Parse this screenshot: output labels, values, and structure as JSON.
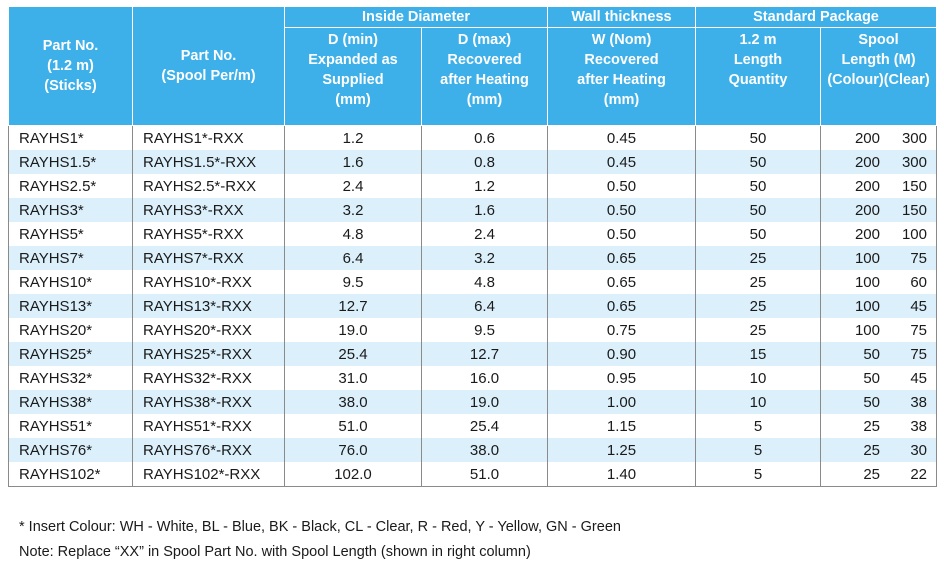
{
  "header": {
    "part_no_sticks": [
      "Part No.",
      "(1.2 m)",
      "(Sticks)"
    ],
    "part_no_spool": [
      "Part No.",
      "(Spool Per/m)"
    ],
    "inside_diameter": "Inside Diameter",
    "d_min": [
      "D (min)",
      "Expanded as",
      "Supplied",
      "(mm)"
    ],
    "d_max": [
      "D (max)",
      "Recovered",
      "after Heating",
      "(mm)"
    ],
    "wall_thickness": "Wall thickness",
    "w_nom": [
      "W (Nom)",
      "Recovered",
      "after Heating",
      "(mm)"
    ],
    "standard_package": "Standard Package",
    "length_qty": [
      "1.2 m",
      "Length",
      "Quantity"
    ],
    "spool_length": [
      "Spool",
      "Length (M)",
      "(Colour)(Clear)"
    ]
  },
  "rows": [
    {
      "part": "RAYHS1*",
      "spool_part": "RAYHS1*-RXX",
      "dmin": "1.2",
      "dmax": "0.6",
      "wall": "0.45",
      "qty": "50",
      "colour": "200",
      "clear": "300"
    },
    {
      "part": "RAYHS1.5*",
      "spool_part": "RAYHS1.5*-RXX",
      "dmin": "1.6",
      "dmax": "0.8",
      "wall": "0.45",
      "qty": "50",
      "colour": "200",
      "clear": "300"
    },
    {
      "part": "RAYHS2.5*",
      "spool_part": "RAYHS2.5*-RXX",
      "dmin": "2.4",
      "dmax": "1.2",
      "wall": "0.50",
      "qty": "50",
      "colour": "200",
      "clear": "150"
    },
    {
      "part": "RAYHS3*",
      "spool_part": "RAYHS3*-RXX",
      "dmin": "3.2",
      "dmax": "1.6",
      "wall": "0.50",
      "qty": "50",
      "colour": "200",
      "clear": "150"
    },
    {
      "part": "RAYHS5*",
      "spool_part": "RAYHS5*-RXX",
      "dmin": "4.8",
      "dmax": "2.4",
      "wall": "0.50",
      "qty": "50",
      "colour": "200",
      "clear": "100"
    },
    {
      "part": "RAYHS7*",
      "spool_part": "RAYHS7*-RXX",
      "dmin": "6.4",
      "dmax": "3.2",
      "wall": "0.65",
      "qty": "25",
      "colour": "100",
      "clear": "75"
    },
    {
      "part": "RAYHS10*",
      "spool_part": "RAYHS10*-RXX",
      "dmin": "9.5",
      "dmax": "4.8",
      "wall": "0.65",
      "qty": "25",
      "colour": "100",
      "clear": "60"
    },
    {
      "part": "RAYHS13*",
      "spool_part": "RAYHS13*-RXX",
      "dmin": "12.7",
      "dmax": "6.4",
      "wall": "0.65",
      "qty": "25",
      "colour": "100",
      "clear": "45"
    },
    {
      "part": "RAYHS20*",
      "spool_part": "RAYHS20*-RXX",
      "dmin": "19.0",
      "dmax": "9.5",
      "wall": "0.75",
      "qty": "25",
      "colour": "100",
      "clear": "75"
    },
    {
      "part": "RAYHS25*",
      "spool_part": "RAYHS25*-RXX",
      "dmin": "25.4",
      "dmax": "12.7",
      "wall": "0.90",
      "qty": "15",
      "colour": "50",
      "clear": "75"
    },
    {
      "part": "RAYHS32*",
      "spool_part": "RAYHS32*-RXX",
      "dmin": "31.0",
      "dmax": "16.0",
      "wall": "0.95",
      "qty": "10",
      "colour": "50",
      "clear": "45"
    },
    {
      "part": "RAYHS38*",
      "spool_part": "RAYHS38*-RXX",
      "dmin": "38.0",
      "dmax": "19.0",
      "wall": "1.00",
      "qty": "10",
      "colour": "50",
      "clear": "38"
    },
    {
      "part": "RAYHS51*",
      "spool_part": "RAYHS51*-RXX",
      "dmin": "51.0",
      "dmax": "25.4",
      "wall": "1.15",
      "qty": "5",
      "colour": "25",
      "clear": "38"
    },
    {
      "part": "RAYHS76*",
      "spool_part": "RAYHS76*-RXX",
      "dmin": "76.0",
      "dmax": "38.0",
      "wall": "1.25",
      "qty": "5",
      "colour": "25",
      "clear": "30"
    },
    {
      "part": "RAYHS102*",
      "spool_part": "RAYHS102*-RXX",
      "dmin": "102.0",
      "dmax": "51.0",
      "wall": "1.40",
      "qty": "5",
      "colour": "25",
      "clear": "22"
    }
  ],
  "notes": {
    "insert_colour": "* Insert Colour: WH - White, BL - Blue, BK - Black, CL - Clear, R - Red, Y - Yellow, GN - Green",
    "replace_note": "Note: Replace “XX” in Spool Part No. with Spool Length (shown in right column)"
  },
  "colors": {
    "header_bg": "#3db0ea",
    "header_text": "#ffffff",
    "alt_row_bg": "#dcf0fb",
    "border": "#8a8a8a"
  }
}
